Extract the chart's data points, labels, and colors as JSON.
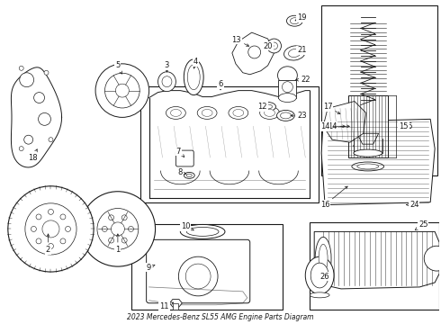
{
  "title": "2023 Mercedes-Benz SL55 AMG Engine Parts Diagram",
  "bg_color": "#ffffff",
  "line_color": "#1a1a1a",
  "figsize": [
    4.9,
    3.6
  ],
  "dpi": 100
}
